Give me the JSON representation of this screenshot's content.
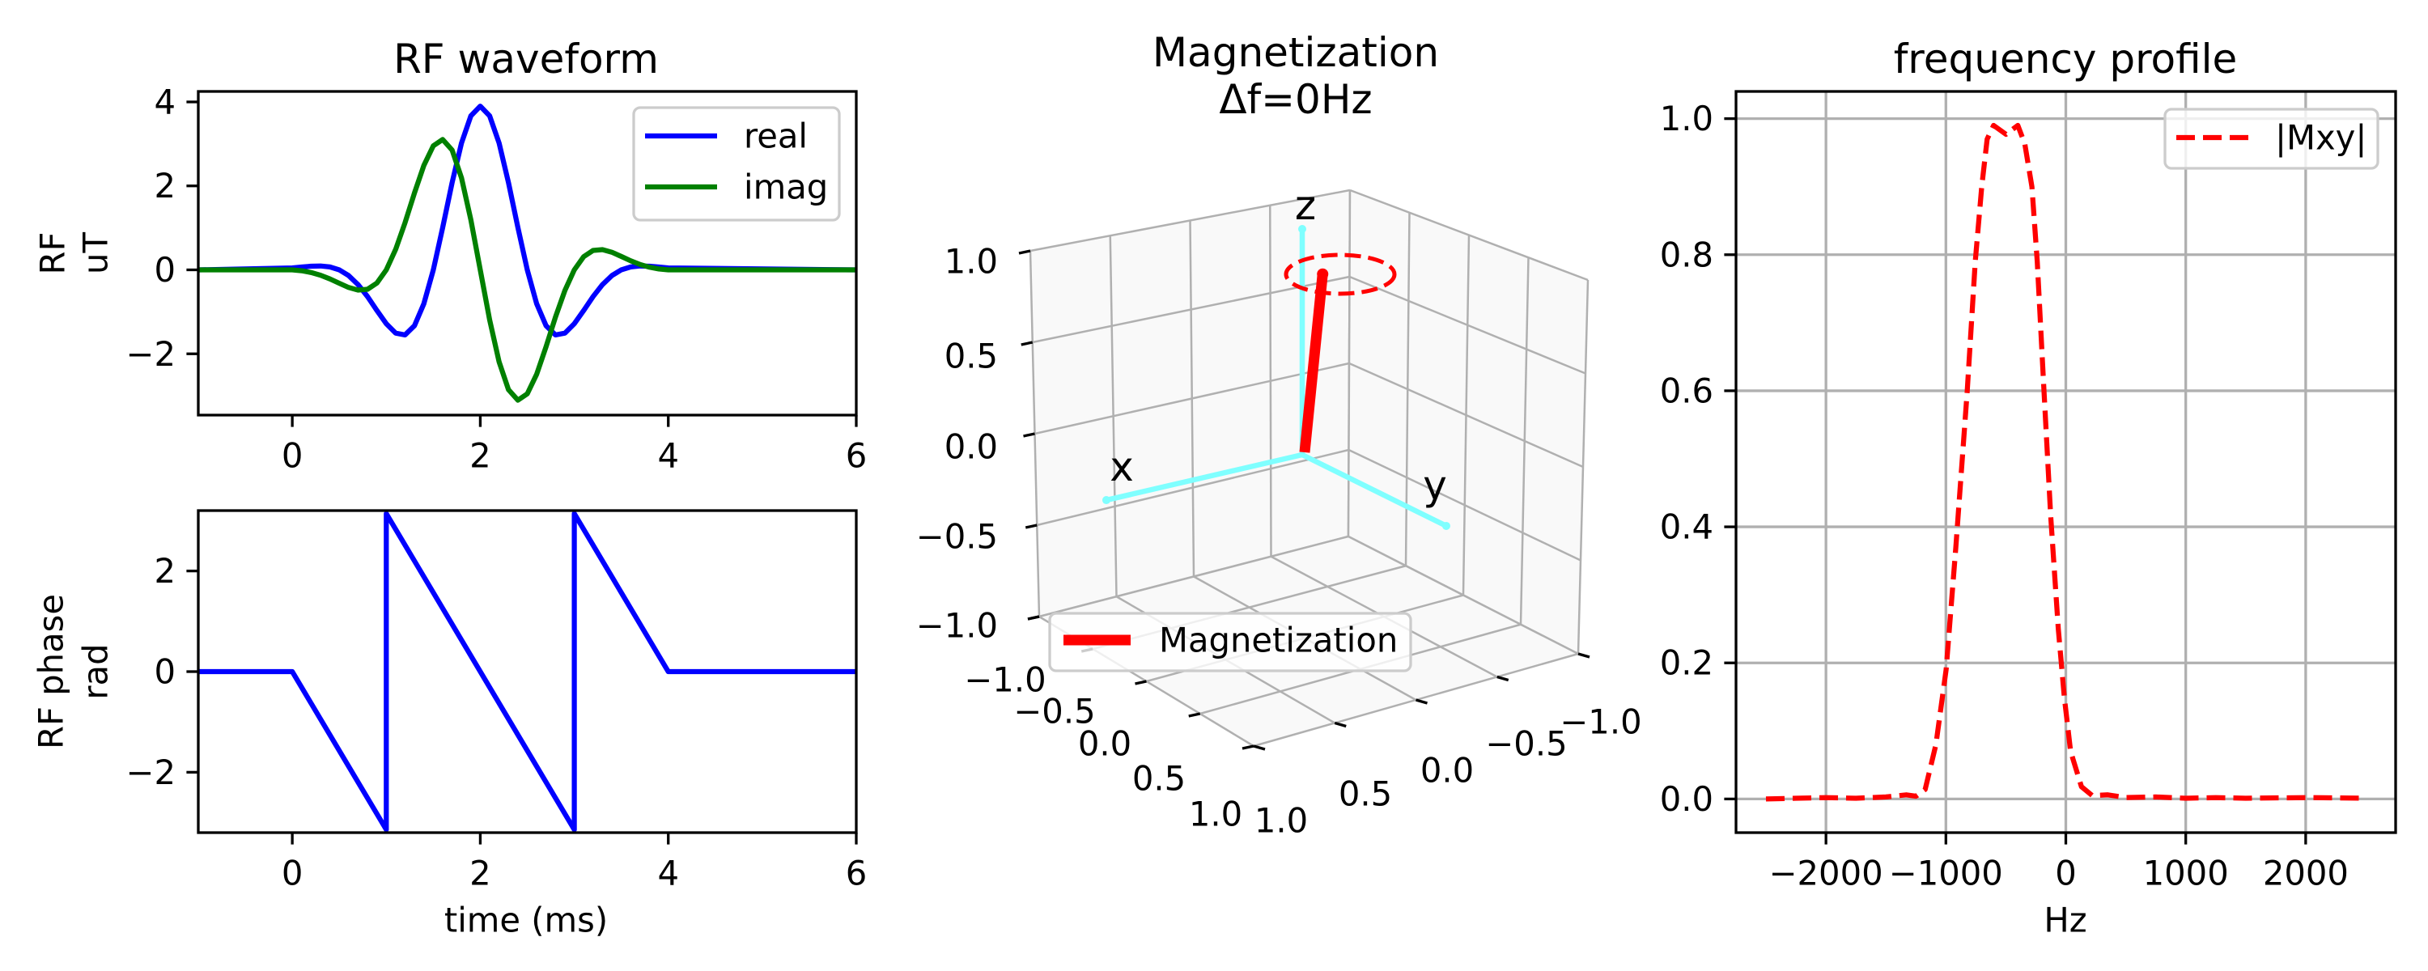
{
  "chart_data": [
    {
      "type": "line",
      "title": "RF waveform",
      "ylabel": [
        "RF",
        "uT"
      ],
      "xlabel": "",
      "xlim": [
        -1,
        6
      ],
      "ylim": [
        -3.46,
        4.25
      ],
      "xticks": [
        0,
        2,
        4,
        6
      ],
      "xtick_labels": [
        "0",
        "2",
        "4",
        "6"
      ],
      "yticks": [
        -2,
        0,
        2,
        4
      ],
      "ytick_labels": [
        "−2",
        "0",
        "2",
        "4"
      ],
      "grid": false,
      "legend": "top-right",
      "x": [
        -1,
        0,
        0.1,
        0.2,
        0.3,
        0.4,
        0.5,
        0.6,
        0.7,
        0.8,
        0.9,
        1,
        1.1,
        1.2,
        1.3,
        1.4,
        1.5,
        1.6,
        1.7,
        1.8,
        1.9,
        2,
        2.1,
        2.2,
        2.3,
        2.4,
        2.5,
        2.6,
        2.7,
        2.8,
        2.9,
        3,
        3.1,
        3.2,
        3.3,
        3.4,
        3.5,
        3.6,
        3.7,
        3.8,
        3.9,
        4,
        6
      ],
      "series": [
        {
          "name": "real",
          "color": "#0000ff",
          "dashed": false,
          "values": [
            0,
            0.046,
            0.068,
            0.087,
            0.092,
            0.07,
            0,
            -0.137,
            -0.35,
            -0.637,
            -0.967,
            -1.284,
            -1.508,
            -1.549,
            -1.331,
            -0.808,
            0,
            1.009,
            2.075,
            3.018,
            3.668,
            3.9,
            3.668,
            3.018,
            2.075,
            1.009,
            0,
            -0.808,
            -1.331,
            -1.549,
            -1.508,
            -1.284,
            -0.967,
            -0.637,
            -0.35,
            -0.137,
            0,
            0.07,
            0.092,
            0.087,
            0.068,
            0.046,
            0
          ]
        },
        {
          "name": "imag",
          "color": "#008000",
          "dashed": false,
          "values": [
            0,
            0,
            -0.022,
            -0.063,
            -0.127,
            -0.216,
            -0.32,
            -0.42,
            -0.482,
            -0.463,
            -0.314,
            0,
            0.49,
            1.126,
            1.831,
            2.486,
            2.954,
            3.105,
            2.855,
            2.193,
            1.192,
            0,
            -1.192,
            -2.193,
            -2.855,
            -3.105,
            -2.954,
            -2.486,
            -1.831,
            -1.126,
            -0.49,
            0,
            0.314,
            0.463,
            0.482,
            0.42,
            0.32,
            0.216,
            0.127,
            0.063,
            0.022,
            0,
            0
          ]
        }
      ]
    },
    {
      "type": "line",
      "title": "",
      "ylabel": [
        "RF phase",
        "rad"
      ],
      "xlabel": "time (ms)",
      "xlim": [
        -1,
        6
      ],
      "ylim": [
        -3.2,
        3.2
      ],
      "xticks": [
        0,
        2,
        4,
        6
      ],
      "xtick_labels": [
        "0",
        "2",
        "4",
        "6"
      ],
      "yticks": [
        -2,
        0,
        2
      ],
      "ytick_labels": [
        "−2",
        "0",
        "2"
      ],
      "grid": false,
      "series": [
        {
          "color": "#0000ff",
          "dashed": false,
          "x": [
            -1,
            0,
            1,
            1,
            3,
            3,
            4,
            6
          ],
          "values": [
            0,
            0,
            -3.14,
            3.14,
            -3.14,
            3.14,
            0,
            0
          ]
        }
      ]
    },
    {
      "type": "3d-vector",
      "title": [
        "Magnetization",
        "Δf=0Hz"
      ],
      "axis_labels": {
        "x": "x",
        "y": "y",
        "z": "z"
      },
      "zticks": [
        "1.0",
        "0.5",
        "0.0",
        "−0.5",
        "−1.0"
      ],
      "xticks": [
        "−1.0",
        "−0.5",
        "0.0",
        "0.5",
        "1.0"
      ],
      "yticks": [
        "1.0",
        "0.5",
        "0.0",
        "−0.5",
        "−1.0"
      ],
      "lim": [
        -1,
        1
      ],
      "vector": [
        -0.07,
        0.075,
        0.97
      ],
      "legend": "Magnetization",
      "colors": {
        "vector": "#ff0000",
        "axes": "#7fffff",
        "trajectory": "#ff0000"
      }
    },
    {
      "type": "line",
      "title": "frequency profile",
      "xlabel": "Hz",
      "xlim": [
        -2750,
        2750
      ],
      "ylim": [
        -0.0495,
        1.04
      ],
      "xticks": [
        -2000,
        -1000,
        0,
        1000,
        2000
      ],
      "xtick_labels": [
        "−2000",
        "−1000",
        "0",
        "1000",
        "2000"
      ],
      "yticks": [
        0,
        0.2,
        0.4,
        0.6,
        0.8,
        1.0
      ],
      "ytick_labels": [
        "0.0",
        "0.2",
        "0.4",
        "0.6",
        "0.8",
        "1.0"
      ],
      "grid": true,
      "legend": "top-right",
      "series": [
        {
          "name": "|Mxy|",
          "color": "#ff0000",
          "dashed": true,
          "x": [
            -2500,
            -2250,
            -2000,
            -1750,
            -1500,
            -1330,
            -1250,
            -1173,
            -1083,
            -998,
            -917,
            -822,
            -755,
            -701,
            -656,
            -602,
            -499,
            -400,
            -342,
            -283,
            -238,
            -184,
            -126,
            -63,
            -13,
            40,
            130,
            220,
            350,
            500,
            750,
            1000,
            1250,
            1500,
            2000,
            2500
          ],
          "values": [
            0,
            0.001,
            0.002,
            0.001,
            0.003,
            0.006,
            0.004,
            0.014,
            0.08,
            0.19,
            0.37,
            0.6,
            0.79,
            0.9,
            0.97,
            0.99,
            0.977,
            0.99,
            0.963,
            0.9,
            0.79,
            0.607,
            0.416,
            0.25,
            0.15,
            0.07,
            0.018,
            0.005,
            0.006,
            0.002,
            0.003,
            0.001,
            0.002,
            0.001,
            0.002,
            0.001
          ]
        }
      ]
    }
  ]
}
